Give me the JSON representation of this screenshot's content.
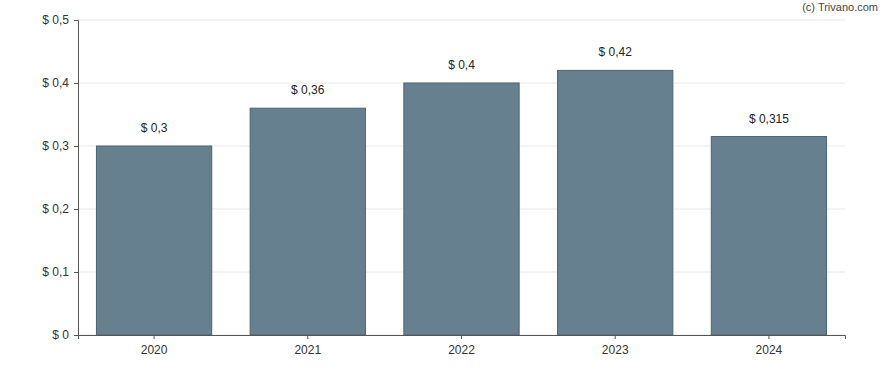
{
  "chart_data": {
    "type": "bar",
    "annotations": [
      "(c) Trivano.com"
    ],
    "categories": [
      "2020",
      "2021",
      "2022",
      "2023",
      "2024"
    ],
    "values": [
      0.3,
      0.36,
      0.4,
      0.42,
      0.315
    ],
    "value_labels": [
      "$ 0,3",
      "$ 0,36",
      "$ 0,4",
      "$ 0,42",
      "$ 0,315"
    ],
    "data_labels": true,
    "color": "#66808f",
    "ylim": [
      0,
      0.5
    ],
    "yticks": [
      {
        "value": 0,
        "label": "$ 0"
      },
      {
        "value": 0.1,
        "label": "$ 0,1"
      },
      {
        "value": 0.2,
        "label": "$ 0,2"
      },
      {
        "value": 0.3,
        "label": "$ 0,3"
      },
      {
        "value": 0.4,
        "label": "$ 0,4"
      },
      {
        "value": 0.5,
        "label": "$ 0,5"
      }
    ],
    "grid": true
  }
}
